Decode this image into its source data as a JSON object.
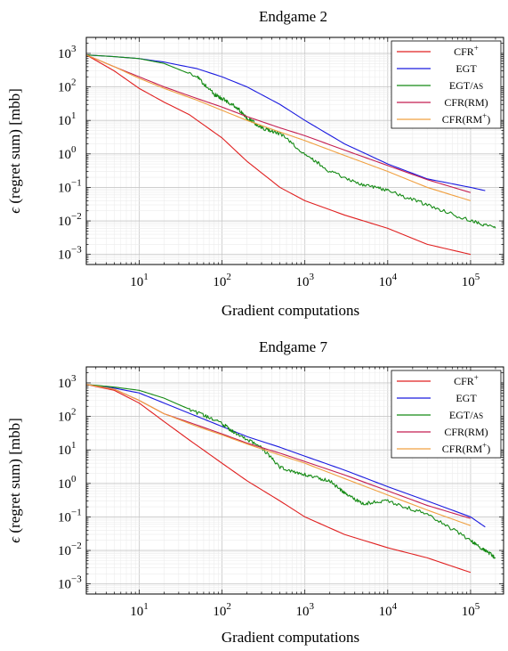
{
  "chart_data": [
    {
      "type": "line",
      "title": "Endgame 2",
      "xlabel": "Gradient computations",
      "ylabel": "ϵ (regret sum) [mbb]",
      "xscale": "log",
      "yscale": "log",
      "xlim": [
        2.3,
        250000
      ],
      "ylim": [
        0.0005,
        3000
      ],
      "grid": true,
      "legend_position": "top-right",
      "x_tick_labels": [
        "10^1",
        "10^2",
        "10^3",
        "10^4",
        "10^5"
      ],
      "y_tick_labels": [
        "10^3",
        "10^2",
        "10^1",
        "10^0",
        "10^-1",
        "10^-2",
        "10^-3"
      ],
      "series": [
        {
          "name": "CFR+",
          "color": "#e02020",
          "noisy": false,
          "x": [
            2.3,
            5,
            10,
            20,
            40,
            100,
            200,
            500,
            1000,
            3000,
            10000,
            30000,
            100000
          ],
          "y": [
            900,
            300,
            90,
            35,
            15,
            3,
            0.6,
            0.1,
            0.04,
            0.015,
            0.006,
            0.002,
            0.001
          ]
        },
        {
          "name": "EGT",
          "color": "#1a1adf",
          "noisy": false,
          "x": [
            2.3,
            5,
            10,
            20,
            50,
            100,
            200,
            500,
            1000,
            3000,
            10000,
            30000,
            100000,
            150000
          ],
          "y": [
            900,
            800,
            700,
            550,
            350,
            200,
            100,
            30,
            10,
            2,
            0.5,
            0.18,
            0.1,
            0.08
          ]
        },
        {
          "name": "EGT/AS",
          "color": "#158a15",
          "noisy": true,
          "x": [
            2.3,
            5,
            10,
            20,
            50,
            80,
            100,
            150,
            200,
            300,
            500,
            1000,
            2000,
            5000,
            10000,
            30000,
            100000,
            200000
          ],
          "y": [
            900,
            800,
            700,
            500,
            200,
            60,
            45,
            25,
            12,
            6,
            4,
            1.0,
            0.3,
            0.12,
            0.08,
            0.03,
            0.01,
            0.006
          ]
        },
        {
          "name": "CFR(RM)",
          "color": "#c41e50",
          "noisy": false,
          "x": [
            2.3,
            5,
            10,
            20,
            50,
            100,
            200,
            500,
            1000,
            3000,
            10000,
            30000,
            100000
          ],
          "y": [
            900,
            400,
            200,
            100,
            45,
            25,
            13,
            6,
            3.5,
            1.3,
            0.45,
            0.17,
            0.07
          ]
        },
        {
          "name": "CFR(RM+)",
          "color": "#f0a040",
          "noisy": false,
          "x": [
            2.3,
            5,
            10,
            20,
            50,
            100,
            200,
            500,
            1000,
            3000,
            10000,
            30000,
            100000
          ],
          "y": [
            900,
            400,
            180,
            90,
            40,
            20,
            10,
            4.5,
            2.5,
            0.9,
            0.3,
            0.1,
            0.04
          ]
        }
      ]
    },
    {
      "type": "line",
      "title": "Endgame 7",
      "xlabel": "Gradient computations",
      "ylabel": "ϵ (regret sum) [mbb]",
      "xscale": "log",
      "yscale": "log",
      "xlim": [
        2.3,
        250000
      ],
      "ylim": [
        0.0005,
        3000
      ],
      "grid": true,
      "legend_position": "top-right",
      "x_tick_labels": [
        "10^1",
        "10^2",
        "10^3",
        "10^4",
        "10^5"
      ],
      "y_tick_labels": [
        "10^3",
        "10^2",
        "10^1",
        "10^0",
        "10^-1",
        "10^-2",
        "10^-3"
      ],
      "series": [
        {
          "name": "CFR+",
          "color": "#e02020",
          "noisy": false,
          "x": [
            2.3,
            5,
            10,
            20,
            40,
            100,
            200,
            500,
            1000,
            3000,
            10000,
            30000,
            100000
          ],
          "y": [
            900,
            600,
            250,
            70,
            20,
            4,
            1.2,
            0.3,
            0.1,
            0.03,
            0.012,
            0.006,
            0.0022
          ]
        },
        {
          "name": "EGT",
          "color": "#1a1adf",
          "noisy": false,
          "x": [
            2.3,
            5,
            10,
            20,
            50,
            100,
            200,
            500,
            1000,
            3000,
            10000,
            30000,
            100000,
            150000
          ],
          "y": [
            900,
            700,
            500,
            250,
            100,
            50,
            25,
            12,
            6.5,
            2.5,
            0.8,
            0.3,
            0.1,
            0.05
          ]
        },
        {
          "name": "EGT/AS",
          "color": "#158a15",
          "noisy": true,
          "x": [
            2.3,
            5,
            10,
            20,
            50,
            100,
            150,
            300,
            500,
            1000,
            2000,
            3000,
            5000,
            10000,
            30000,
            100000,
            150000,
            200000
          ],
          "y": [
            900,
            750,
            600,
            350,
            130,
            60,
            30,
            12,
            3,
            1.8,
            1.2,
            0.5,
            0.25,
            0.3,
            0.12,
            0.02,
            0.01,
            0.006
          ]
        },
        {
          "name": "CFR(RM)",
          "color": "#c41e50",
          "noisy": false,
          "x": [
            2.3,
            5,
            10,
            20,
            50,
            100,
            200,
            500,
            1000,
            3000,
            10000,
            30000,
            100000
          ],
          "y": [
            900,
            650,
            300,
            120,
            55,
            30,
            16,
            8,
            4.5,
            1.8,
            0.6,
            0.22,
            0.09
          ]
        },
        {
          "name": "CFR(RM+)",
          "color": "#f0a040",
          "noisy": false,
          "x": [
            2.3,
            5,
            10,
            20,
            50,
            100,
            200,
            500,
            1000,
            3000,
            10000,
            30000,
            100000
          ],
          "y": [
            900,
            650,
            300,
            120,
            50,
            28,
            15,
            7,
            4,
            1.4,
            0.45,
            0.16,
            0.055
          ]
        }
      ]
    }
  ]
}
